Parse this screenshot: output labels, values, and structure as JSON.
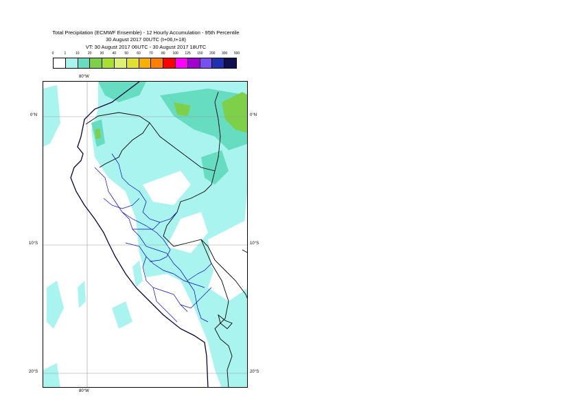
{
  "title": {
    "line1": "Total Precipitation (ECMWF Ensemble) - 12 Hourly Accumulation - 95th Percentile",
    "line2": "30 August 2017 00UTC (t+06,t+18)",
    "line3": "VT: 30 August 2017 06UTC - 30 August 2017 18UTC"
  },
  "legend": {
    "thresholds": [
      "0",
      "1",
      "10",
      "20",
      "30",
      "40",
      "50",
      "60",
      "70",
      "80",
      "100",
      "125",
      "150",
      "200",
      "300",
      "500"
    ],
    "colors": [
      "#ffffff",
      "#aaf4f0",
      "#66dcc0",
      "#7ed048",
      "#a8e030",
      "#e0f070",
      "#e0e030",
      "#f8b000",
      "#ff8000",
      "#ff0000",
      "#ff00ff",
      "#a000d0",
      "#7850f0",
      "#2030b0",
      "#101050"
    ]
  },
  "axes": {
    "lon_top": "80°W",
    "lon_bottom": "80°W",
    "lat_0_left": "0°N",
    "lat_0_right": "0°N",
    "lat_10_left": "10°S",
    "lat_10_right": "10°S",
    "lat_20_left": "20°S",
    "lat_20_right": "20°S"
  },
  "colors": {
    "coast": "#000040",
    "border": "#000000",
    "regions": "#0000cc",
    "light_rain": "#aaf4f0",
    "moderate_rain": "#66dcc0",
    "heavy_rain": "#7ed048",
    "grid": "#999999"
  }
}
